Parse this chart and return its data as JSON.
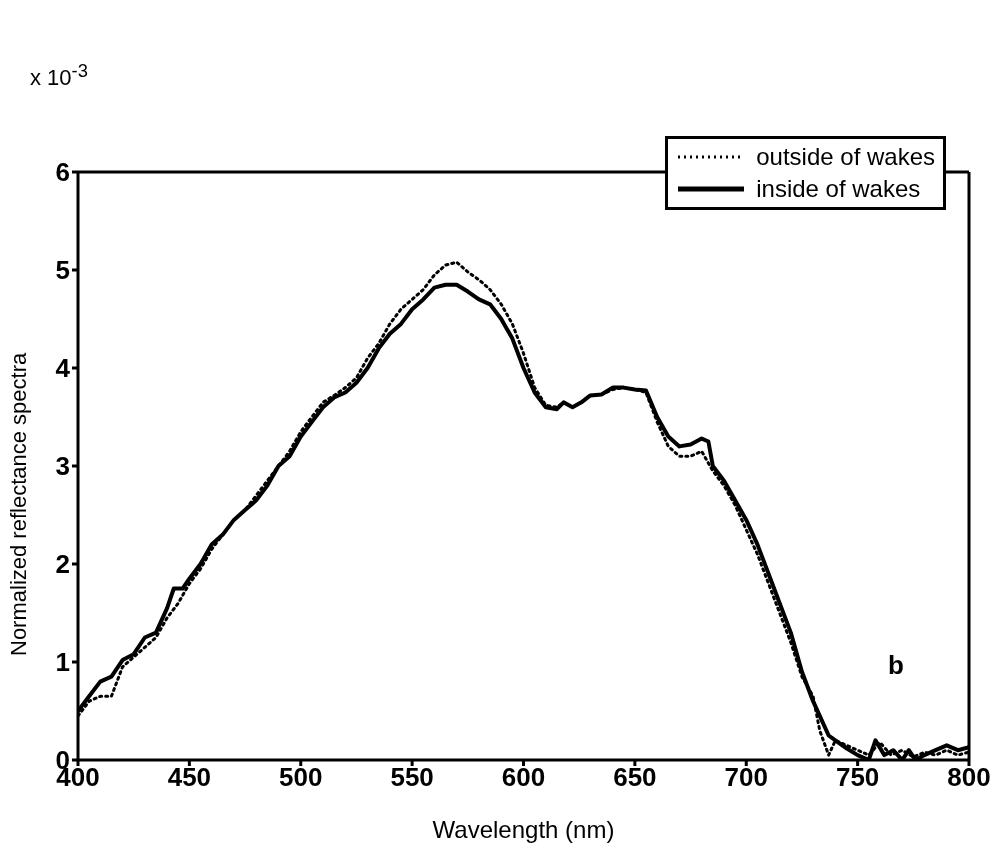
{
  "chart_data": {
    "type": "line",
    "xlabel": "Wavelength (nm)",
    "ylabel": "Normalized reflectance spectra",
    "annotations": [
      "x 10$^{-3}$",
      "b"
    ],
    "xlim": [
      400,
      800
    ],
    "xticks": [
      400,
      450,
      500,
      550,
      600,
      650,
      700,
      750,
      800
    ],
    "ylim": [
      0,
      6
    ],
    "yticks": [
      0,
      1,
      2,
      3,
      4,
      5,
      6
    ],
    "grid": false,
    "legend": "top right",
    "marker": "none",
    "series": [
      {
        "name": "outside of wakes",
        "color": "#000000",
        "line_style": "dotted",
        "x": [
          400,
          405,
          410,
          415,
          420,
          425,
          430,
          435,
          440,
          445,
          450,
          455,
          460,
          465,
          470,
          475,
          480,
          485,
          490,
          495,
          500,
          505,
          510,
          515,
          520,
          525,
          530,
          535,
          540,
          545,
          550,
          555,
          560,
          565,
          570,
          575,
          580,
          585,
          590,
          595,
          600,
          605,
          610,
          615,
          618,
          622,
          626,
          630,
          635,
          640,
          645,
          650,
          655,
          660,
          665,
          670,
          675,
          680,
          685,
          690,
          695,
          700,
          705,
          710,
          715,
          720,
          725,
          730,
          733,
          737,
          740,
          745,
          750,
          755,
          760,
          765,
          770,
          775,
          780,
          785,
          790,
          795,
          800
        ],
        "values": [
          0.45,
          0.6,
          0.65,
          0.65,
          0.95,
          1.05,
          1.15,
          1.25,
          1.45,
          1.6,
          1.8,
          1.95,
          2.15,
          2.3,
          2.45,
          2.55,
          2.7,
          2.85,
          3.0,
          3.15,
          3.35,
          3.5,
          3.65,
          3.72,
          3.8,
          3.9,
          4.1,
          4.25,
          4.45,
          4.6,
          4.7,
          4.8,
          4.95,
          5.05,
          5.08,
          4.98,
          4.9,
          4.8,
          4.65,
          4.45,
          4.15,
          3.8,
          3.62,
          3.6,
          3.65,
          3.6,
          3.65,
          3.72,
          3.73,
          3.78,
          3.8,
          3.78,
          3.75,
          3.45,
          3.2,
          3.1,
          3.1,
          3.15,
          2.95,
          2.8,
          2.6,
          2.35,
          2.1,
          1.8,
          1.5,
          1.2,
          0.85,
          0.65,
          0.3,
          0.05,
          0.2,
          0.15,
          0.1,
          0.05,
          0.18,
          0.05,
          0.1,
          0.03,
          0.08,
          0.05,
          0.1,
          0.05,
          0.08
        ]
      },
      {
        "name": "inside of wakes",
        "color": "#000000",
        "line_style": "solid",
        "x": [
          400,
          405,
          410,
          415,
          420,
          425,
          430,
          435,
          440,
          443,
          447,
          450,
          455,
          460,
          465,
          470,
          475,
          480,
          485,
          490,
          495,
          500,
          505,
          510,
          515,
          520,
          525,
          530,
          535,
          540,
          545,
          550,
          555,
          560,
          565,
          570,
          575,
          580,
          585,
          590,
          595,
          600,
          605,
          610,
          615,
          618,
          622,
          626,
          630,
          635,
          640,
          645,
          650,
          655,
          660,
          665,
          670,
          675,
          680,
          683,
          685,
          690,
          695,
          700,
          705,
          710,
          715,
          720,
          725,
          730,
          733,
          737,
          740,
          745,
          750,
          755,
          758,
          762,
          766,
          770,
          773,
          776,
          780,
          785,
          790,
          795,
          800
        ],
        "values": [
          0.5,
          0.65,
          0.8,
          0.85,
          1.02,
          1.08,
          1.25,
          1.3,
          1.55,
          1.75,
          1.75,
          1.85,
          2.0,
          2.2,
          2.3,
          2.45,
          2.55,
          2.65,
          2.8,
          3.0,
          3.1,
          3.3,
          3.45,
          3.6,
          3.7,
          3.75,
          3.85,
          4.0,
          4.2,
          4.35,
          4.45,
          4.6,
          4.7,
          4.82,
          4.85,
          4.85,
          4.78,
          4.7,
          4.65,
          4.5,
          4.3,
          4.0,
          3.75,
          3.6,
          3.58,
          3.65,
          3.6,
          3.65,
          3.72,
          3.73,
          3.8,
          3.8,
          3.78,
          3.77,
          3.5,
          3.3,
          3.2,
          3.22,
          3.28,
          3.25,
          3.0,
          2.85,
          2.65,
          2.45,
          2.2,
          1.9,
          1.6,
          1.3,
          0.9,
          0.6,
          0.45,
          0.25,
          0.2,
          0.12,
          0.05,
          0.0,
          0.2,
          0.05,
          0.1,
          0.0,
          0.1,
          0.0,
          0.05,
          0.1,
          0.15,
          0.1,
          0.13
        ]
      }
    ]
  }
}
